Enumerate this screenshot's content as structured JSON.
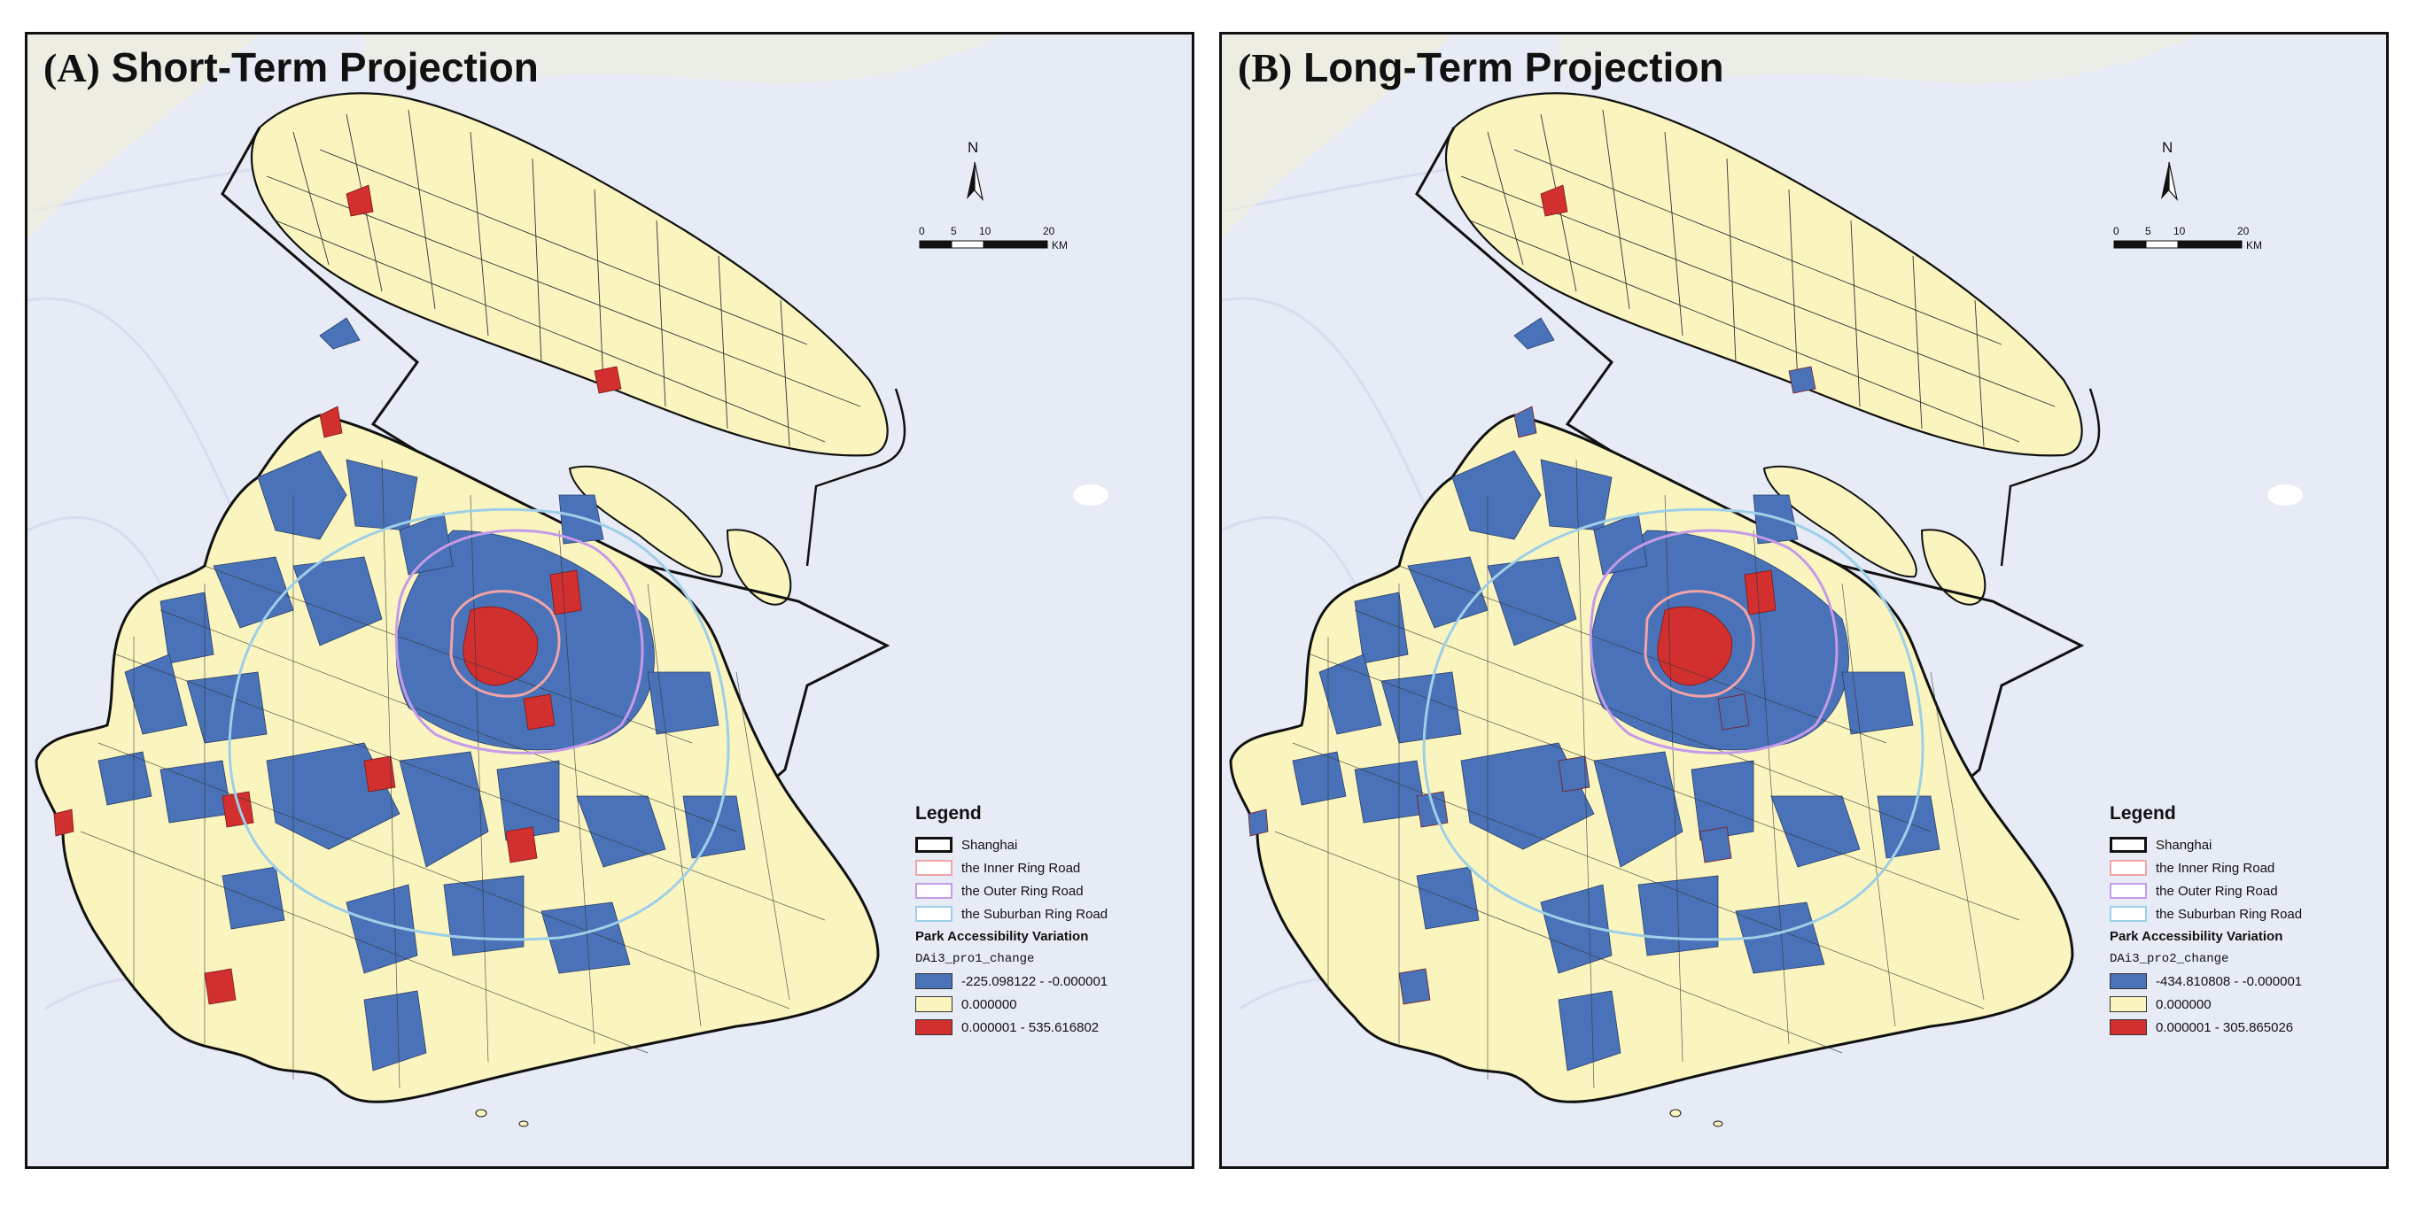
{
  "colors": {
    "background": "#e6ebf5",
    "neutral": "#faf5bf",
    "negative": "#4a72b8",
    "positive": "#d22f2f",
    "boundary": "#111111",
    "inner_ring": "#f1a3a7",
    "outer_ring": "#c59ae8",
    "suburban_ring": "#9ecfe8"
  },
  "panels": [
    {
      "title_letter": "(A)",
      "title_text": "Short-Term Projection",
      "north_label": "N",
      "scale": {
        "ticks": [
          "0",
          "5",
          "10",
          "20"
        ],
        "unit": "KM"
      },
      "legend": {
        "title": "Legend",
        "items": [
          {
            "label": "Shanghai"
          },
          {
            "label": "the Inner Ring Road"
          },
          {
            "label": "the Outer Ring Road"
          },
          {
            "label": "the Suburban Ring Road"
          }
        ],
        "subtitle": "Park Accessibility Variation",
        "field": "DAi3_pro1_change",
        "classes": [
          {
            "label": "-225.098122 - -0.000001",
            "color_key": "negative"
          },
          {
            "label": "0.000000",
            "color_key": "neutral"
          },
          {
            "label": "0.000001 - 535.616802",
            "color_key": "positive"
          }
        ]
      }
    },
    {
      "title_letter": "(B)",
      "title_text": "Long-Term Projection",
      "north_label": "N",
      "scale": {
        "ticks": [
          "0",
          "5",
          "10",
          "20"
        ],
        "unit": "KM"
      },
      "legend": {
        "title": "Legend",
        "items": [
          {
            "label": "Shanghai"
          },
          {
            "label": "the Inner Ring Road"
          },
          {
            "label": "the Outer Ring Road"
          },
          {
            "label": "the Suburban Ring Road"
          }
        ],
        "subtitle": "Park Accessibility Variation",
        "field": "DAi3_pro2_change",
        "classes": [
          {
            "label": "-434.810808 - -0.000001",
            "color_key": "negative"
          },
          {
            "label": "0.000000",
            "color_key": "neutral"
          },
          {
            "label": "0.000001 - 305.865026",
            "color_key": "positive"
          }
        ]
      }
    }
  ]
}
